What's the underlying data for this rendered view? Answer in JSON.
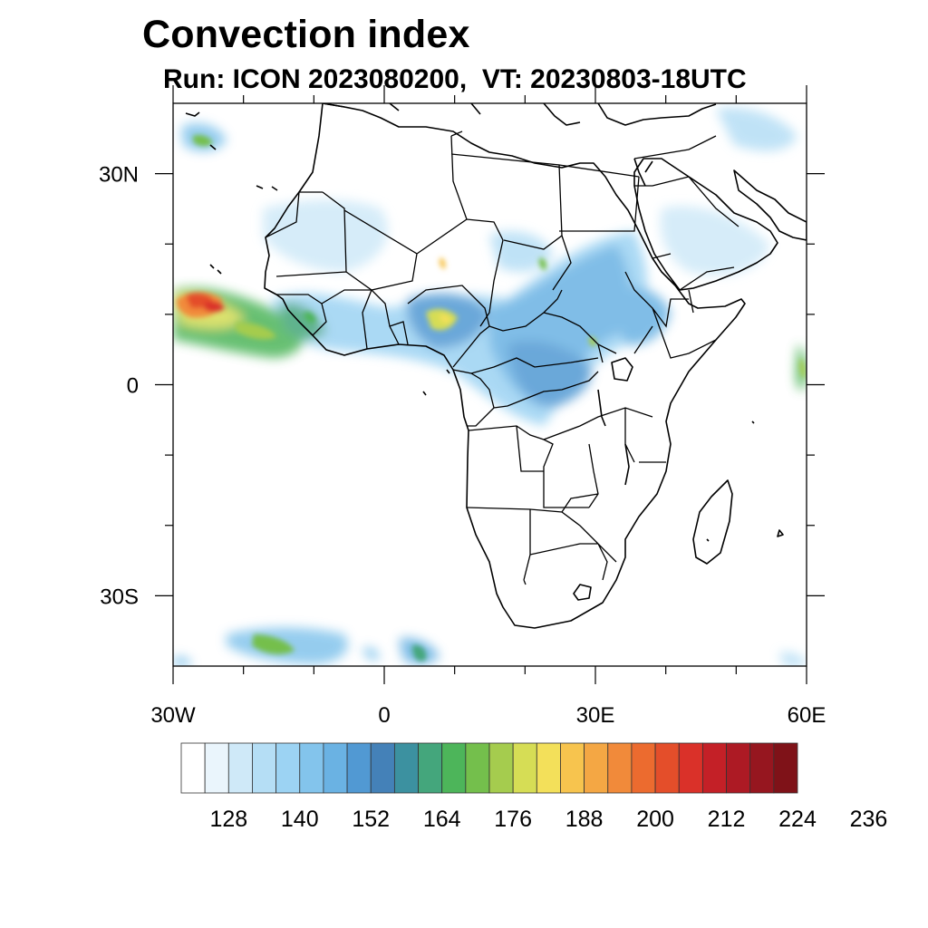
{
  "title": "Convection index",
  "subtitle": "Run: ICON 2023080200,  VT: 20230803-18UTC",
  "map": {
    "projection": "cylindrical equidistant",
    "lon_range": [
      -30,
      60
    ],
    "lat_range": [
      -40,
      40
    ],
    "x_tick_labels": [
      {
        "lon": -30,
        "label": "30W"
      },
      {
        "lon": 0,
        "label": "0"
      },
      {
        "lon": 30,
        "label": "30E"
      },
      {
        "lon": 60,
        "label": "60E"
      }
    ],
    "y_tick_labels": [
      {
        "lat": 30,
        "label": "30N"
      },
      {
        "lat": 0,
        "label": "0"
      },
      {
        "lat": -30,
        "label": "30S"
      }
    ],
    "minor_lon_ticks": [
      -20,
      -10,
      10,
      20,
      40,
      50
    ],
    "minor_lat_ticks": [
      20,
      10,
      -10,
      -20
    ]
  },
  "colorbar": {
    "colors": [
      "#ffffff",
      "#eaf5fc",
      "#cfe9f8",
      "#b5def5",
      "#9cd3f3",
      "#83c4ec",
      "#6ab2e3",
      "#5199d3",
      "#4481b8",
      "#3c91a0",
      "#44a67c",
      "#4db55a",
      "#74bf4c",
      "#a5cc4e",
      "#d6dd55",
      "#f3e05a",
      "#f7c44e",
      "#f4a744",
      "#f18a3a",
      "#ec6b2f",
      "#e44e2a",
      "#da3129",
      "#c42027",
      "#ad1a24",
      "#96161f",
      "#7f1218"
    ],
    "labels": [
      "128",
      "140",
      "152",
      "164",
      "176",
      "188",
      "200",
      "212",
      "224",
      "236"
    ]
  },
  "chart_data": {
    "type": "heatmap",
    "title": "Convection index",
    "variable": "Convection index",
    "levels": [
      120,
      124,
      128,
      132,
      136,
      140,
      144,
      148,
      152,
      156,
      160,
      164,
      168,
      172,
      176,
      180,
      184,
      188,
      192,
      196,
      200,
      204,
      208,
      212,
      216,
      220,
      224,
      228,
      232,
      236,
      240
    ],
    "regions": [
      {
        "lon": -27,
        "lat": 12,
        "value": 220
      },
      {
        "lon": -20,
        "lat": 9,
        "value": 180
      },
      {
        "lon": -12,
        "lat": 8,
        "value": 168
      },
      {
        "lon": 8,
        "lat": 10,
        "value": 188
      },
      {
        "lon": 22,
        "lat": 11,
        "value": 152
      },
      {
        "lon": 28,
        "lat": 2,
        "value": 148
      },
      {
        "lon": 36,
        "lat": 9,
        "value": 150
      },
      {
        "lon": 25,
        "lat": 17,
        "value": 142
      },
      {
        "lon": -10,
        "lat": 23,
        "value": 136
      },
      {
        "lon": 57,
        "lat": 1,
        "value": 172
      },
      {
        "lon": -15,
        "lat": -37,
        "value": 170
      },
      {
        "lon": -25,
        "lat": 36,
        "value": 156
      },
      {
        "lon": 5,
        "lat": -38,
        "value": 160
      }
    ]
  }
}
